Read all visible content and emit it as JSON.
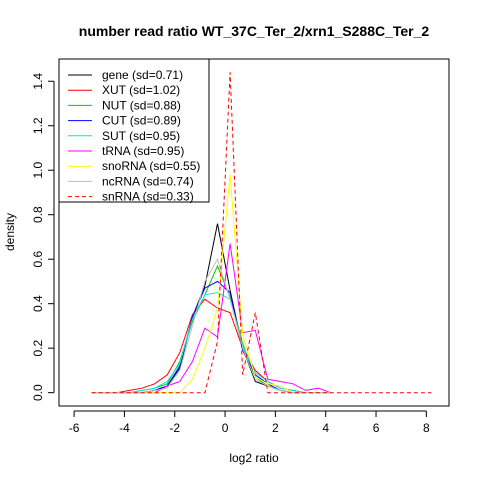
{
  "chart_data": {
    "type": "line",
    "title": "number read ratio WT_37C_Ter_2/xrn1_S288C_Ter_2",
    "xlabel": "log2 ratio",
    "ylabel": "density",
    "xlim": [
      -6.6,
      8.9
    ],
    "ylim": [
      -0.06,
      1.5
    ],
    "xticks": [
      -6,
      -4,
      -2,
      0,
      2,
      4,
      6,
      8
    ],
    "yticks": [
      0.0,
      0.2,
      0.4,
      0.6,
      0.8,
      1.0,
      1.2,
      1.4
    ],
    "xtick_labels": [
      "-6",
      "-4",
      "-2",
      "0",
      "2",
      "4",
      "6",
      "8"
    ],
    "ytick_labels": [
      "0.0",
      "0.2",
      "0.4",
      "0.6",
      "0.8",
      "1.0",
      "1.2",
      "1.4"
    ],
    "grid": false,
    "legend_position": "top-left",
    "series": [
      {
        "name": "gene (sd=0.71)",
        "color": "#000000",
        "dash": "solid",
        "x": [
          -5.3,
          -4.8,
          -4.3,
          -3.8,
          -3.3,
          -2.8,
          -2.3,
          -1.8,
          -1.3,
          -0.8,
          -0.3,
          0.2,
          0.7,
          1.2,
          1.7,
          2.2,
          2.7,
          3.2,
          3.7,
          4.2
        ],
        "y": [
          0,
          0,
          0,
          0,
          0,
          0.01,
          0.03,
          0.11,
          0.34,
          0.48,
          0.76,
          0.46,
          0.2,
          0.05,
          0.03,
          0.01,
          0,
          0,
          0,
          0
        ]
      },
      {
        "name": "XUT (sd=1.02)",
        "color": "#ff0000",
        "dash": "solid",
        "x": [
          -5.3,
          -4.8,
          -4.3,
          -3.8,
          -3.3,
          -2.8,
          -2.3,
          -1.8,
          -1.3,
          -0.8,
          -0.3,
          0.2,
          0.7,
          1.2,
          1.7,
          2.2,
          2.7,
          3.2,
          3.7,
          4.2
        ],
        "y": [
          0,
          0,
          0,
          0.01,
          0.02,
          0.04,
          0.08,
          0.18,
          0.35,
          0.42,
          0.38,
          0.36,
          0.2,
          0.1,
          0.05,
          0.02,
          0.01,
          0,
          0,
          0
        ]
      },
      {
        "name": "NUT (sd=0.88)",
        "color": "#00cc00",
        "dash": "solid",
        "x": [
          -5.3,
          -4.8,
          -4.3,
          -3.8,
          -3.3,
          -2.8,
          -2.3,
          -1.8,
          -1.3,
          -0.8,
          -0.3,
          0.2,
          0.7,
          1.2,
          1.7,
          2.2,
          2.7,
          3.2,
          3.7,
          4.2
        ],
        "y": [
          0,
          0,
          0,
          0,
          0.01,
          0.02,
          0.04,
          0.14,
          0.32,
          0.44,
          0.57,
          0.43,
          0.22,
          0.07,
          0.03,
          0.01,
          0,
          0,
          0,
          0
        ]
      },
      {
        "name": "CUT (sd=0.89)",
        "color": "#0000ff",
        "dash": "solid",
        "x": [
          -5.3,
          -4.8,
          -4.3,
          -3.8,
          -3.3,
          -2.8,
          -2.3,
          -1.8,
          -1.3,
          -0.8,
          -0.3,
          0.2,
          0.7,
          1.2,
          1.7,
          2.2,
          2.7,
          3.2,
          3.7,
          4.2
        ],
        "y": [
          0,
          0,
          0,
          0,
          0,
          0.01,
          0.03,
          0.12,
          0.34,
          0.47,
          0.5,
          0.45,
          0.19,
          0.08,
          0.04,
          0.01,
          0,
          0,
          0,
          0
        ]
      },
      {
        "name": "SUT (sd=0.95)",
        "color": "#00e5e5",
        "dash": "solid",
        "x": [
          -5.3,
          -4.8,
          -4.3,
          -3.8,
          -3.3,
          -2.8,
          -2.3,
          -1.8,
          -1.3,
          -0.8,
          -0.3,
          0.2,
          0.7,
          1.2,
          1.7,
          2.2,
          2.7,
          3.2,
          3.7,
          4.2
        ],
        "y": [
          0,
          0,
          0,
          0,
          0.01,
          0.02,
          0.05,
          0.13,
          0.33,
          0.44,
          0.45,
          0.42,
          0.21,
          0.09,
          0.05,
          0.02,
          0.01,
          0,
          0,
          0
        ]
      },
      {
        "name": "tRNA (sd=0.95)",
        "color": "#ff00ff",
        "dash": "solid",
        "x": [
          -5.3,
          -4.8,
          -4.3,
          -3.8,
          -3.3,
          -2.8,
          -2.3,
          -1.8,
          -1.3,
          -0.8,
          -0.3,
          0.2,
          0.7,
          1.2,
          1.7,
          2.2,
          2.7,
          3.2,
          3.7,
          4.2
        ],
        "y": [
          0,
          0,
          0,
          0,
          0,
          0,
          0.03,
          0.05,
          0.14,
          0.29,
          0.25,
          0.67,
          0.27,
          0.28,
          0.06,
          0.05,
          0.04,
          0.01,
          0.02,
          0
        ]
      },
      {
        "name": "snoRNA (sd=0.55)",
        "color": "#ffff00",
        "dash": "solid",
        "x": [
          -5.3,
          -4.8,
          -4.3,
          -3.8,
          -3.3,
          -2.8,
          -2.3,
          -1.8,
          -1.3,
          -0.8,
          -0.3,
          0.2,
          0.7,
          1.2,
          1.7,
          2.2,
          2.7,
          3.2,
          3.7,
          4.2
        ],
        "y": [
          0,
          0,
          0,
          0,
          0,
          0,
          0,
          0,
          0.06,
          0.2,
          0.38,
          0.98,
          0.26,
          0.07,
          0.04,
          0.03,
          0,
          0,
          0,
          0
        ]
      },
      {
        "name": "ncRNA (sd=0.74)",
        "color": "#bebebe",
        "dash": "solid",
        "x": [
          -5.3,
          -4.8,
          -4.3,
          -3.8,
          -3.3,
          -2.8,
          -2.3,
          -1.8,
          -1.3,
          -0.8,
          -0.3,
          0.2,
          0.7,
          1.2,
          1.7,
          2.2,
          2.7,
          3.2,
          3.7,
          4.2
        ],
        "y": [
          0,
          0,
          0,
          0,
          0,
          0.01,
          0.02,
          0.1,
          0.3,
          0.5,
          0.6,
          0.42,
          0.2,
          0.06,
          0.03,
          0.01,
          0,
          0,
          0,
          0
        ]
      },
      {
        "name": "snRNA (sd=0.33)",
        "color": "#ff0000",
        "dash": "dashed",
        "x": [
          -5.3,
          -4.8,
          -4.3,
          -3.8,
          -3.3,
          -2.8,
          -2.3,
          -1.8,
          -1.3,
          -0.8,
          -0.3,
          0.2,
          0.7,
          1.2,
          1.7,
          2.2,
          2.7,
          3.2,
          3.7,
          4.2,
          4.7,
          5.2,
          5.7,
          6.2,
          6.7,
          7.2,
          7.7,
          8.2
        ],
        "y": [
          0,
          0,
          0,
          0,
          0,
          0,
          0,
          0,
          0,
          0,
          0.23,
          1.44,
          0.08,
          0.36,
          0,
          0,
          0,
          0,
          0,
          0,
          0,
          0,
          0,
          0,
          0,
          0,
          0,
          0
        ]
      }
    ]
  }
}
